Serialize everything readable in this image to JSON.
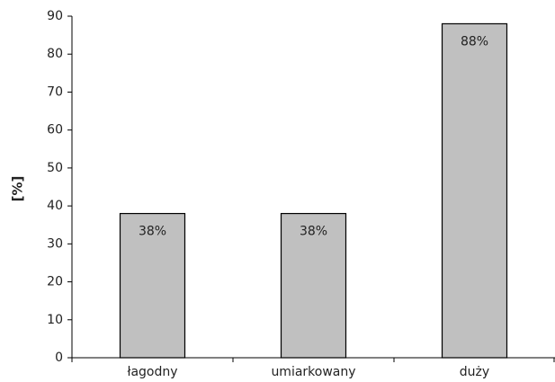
{
  "chart_data": {
    "type": "bar",
    "y_label": "[%]",
    "categories": [
      "łagodny",
      "umiarkowany",
      "duży"
    ],
    "values": [
      38,
      38,
      88
    ],
    "value_labels": [
      "38%",
      "38%",
      "88%"
    ],
    "color": "#c0c0c0",
    "ylim": [
      0,
      90
    ],
    "yticks": [
      0,
      10,
      20,
      30,
      40,
      50,
      60,
      70,
      80,
      90
    ],
    "grid": false
  }
}
